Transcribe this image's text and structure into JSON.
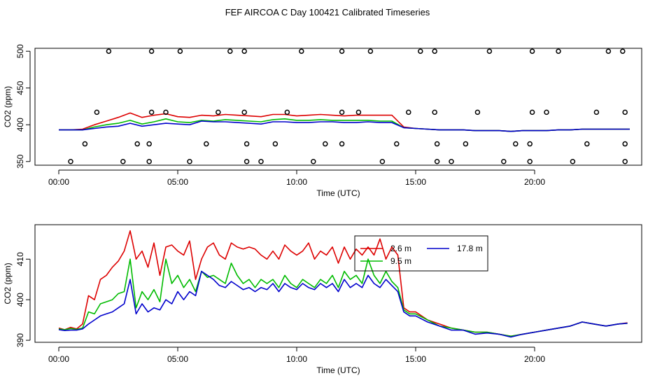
{
  "figure": {
    "title": "FEF AIRCOA C  Day 100421  Calibrated Timeseries"
  },
  "chart_data": [
    {
      "type": "line",
      "panel": "top",
      "xlabel": "Time (UTC)",
      "ylabel": "CO2 (ppm)",
      "xlim": [
        -1,
        24.5
      ],
      "ylim": [
        345,
        504
      ],
      "xticks": [
        0,
        5,
        10,
        15,
        20
      ],
      "xtick_labels": [
        "00:00",
        "05:00",
        "10:00",
        "15:00",
        "20:00"
      ],
      "yticks": [
        350,
        400,
        450,
        500
      ],
      "ytick_labels": [
        "350",
        "400",
        "450",
        "500"
      ],
      "grid": false,
      "legend": "none",
      "x": [
        0.0,
        0.5,
        1.0,
        1.5,
        2.0,
        2.5,
        3.0,
        3.5,
        4.0,
        4.5,
        5.0,
        5.5,
        6.0,
        6.5,
        7.0,
        7.5,
        8.0,
        8.5,
        9.0,
        9.5,
        10.0,
        10.5,
        11.0,
        11.5,
        12.0,
        12.5,
        13.0,
        13.5,
        14.0,
        14.5,
        15.0,
        15.5,
        16.0,
        16.5,
        17.0,
        17.5,
        18.0,
        18.5,
        19.0,
        19.5,
        20.0,
        20.5,
        21.0,
        21.5,
        22.0,
        22.5,
        23.0,
        23.5,
        24.0
      ],
      "series": [
        {
          "color": "#dd0000",
          "values": [
            393,
            393,
            394,
            400,
            405,
            410,
            416,
            410,
            413,
            415,
            411,
            410,
            413,
            412,
            414,
            413,
            412,
            411,
            414,
            414,
            412,
            413,
            414,
            413,
            412,
            413,
            413,
            413,
            413,
            397,
            395,
            394,
            393,
            393,
            393,
            392,
            392,
            392,
            391,
            392,
            392,
            392,
            393,
            393,
            394,
            394,
            394,
            394,
            394
          ]
        },
        {
          "color": "#00bb00",
          "values": [
            393,
            393,
            393,
            397,
            400,
            402,
            406,
            401,
            404,
            408,
            404,
            403,
            406,
            405,
            407,
            406,
            405,
            404,
            407,
            408,
            406,
            406,
            407,
            406,
            406,
            406,
            406,
            405,
            405,
            396,
            395,
            394,
            393,
            393,
            393,
            392,
            392,
            392,
            391,
            392,
            392,
            392,
            393,
            393,
            394,
            394,
            394,
            394,
            394
          ]
        },
        {
          "color": "#0000cc",
          "values": [
            393,
            393,
            393,
            395,
            397,
            398,
            402,
            398,
            400,
            402,
            401,
            400,
            405,
            404,
            404,
            403,
            402,
            401,
            404,
            404,
            403,
            403,
            404,
            404,
            403,
            403,
            404,
            403,
            403,
            396,
            395,
            394,
            393,
            393,
            393,
            392,
            392,
            392,
            391,
            392,
            392,
            392,
            393,
            393,
            394,
            394,
            394,
            394,
            394
          ]
        }
      ],
      "markers": {
        "style": "open-circle",
        "x": [
          2.1,
          3.9,
          5.1,
          7.2,
          7.8,
          10.2,
          11.9,
          13.1,
          15.2,
          15.8,
          18.1,
          19.9,
          21.0,
          23.1,
          23.7,
          1.6,
          3.9,
          4.5,
          6.7,
          7.8,
          9.6,
          11.9,
          12.6,
          14.7,
          15.8,
          17.6,
          19.9,
          20.5,
          22.6,
          23.8,
          1.1,
          3.3,
          3.8,
          6.2,
          7.9,
          9.1,
          11.2,
          11.9,
          14.2,
          15.9,
          17.1,
          19.2,
          19.8,
          22.2,
          23.8,
          0.5,
          2.7,
          3.8,
          5.5,
          7.9,
          8.5,
          10.7,
          13.6,
          15.9,
          16.5,
          18.7,
          19.8,
          21.6,
          23.8
        ],
        "y": [
          500,
          500,
          500,
          500,
          500,
          500,
          500,
          500,
          500,
          500,
          500,
          500,
          500,
          500,
          500,
          417,
          417,
          417,
          417,
          417,
          417,
          417,
          417,
          417,
          417,
          417,
          417,
          417,
          417,
          417,
          374,
          374,
          374,
          374,
          374,
          374,
          374,
          374,
          374,
          374,
          374,
          374,
          374,
          374,
          374,
          350,
          350,
          350,
          350,
          350,
          350,
          350,
          350,
          350,
          350,
          350,
          350,
          350,
          350
        ]
      }
    },
    {
      "type": "line",
      "panel": "bottom",
      "xlabel": "Time (UTC)",
      "ylabel": "CO2 (ppm)",
      "xlim": [
        -1,
        24.5
      ],
      "ylim": [
        389.5,
        418.5
      ],
      "xticks": [
        0,
        5,
        10,
        15,
        20
      ],
      "xtick_labels": [
        "00:00",
        "05:00",
        "10:00",
        "15:00",
        "20:00"
      ],
      "yticks": [
        390,
        400,
        410
      ],
      "ytick_labels": [
        "390",
        "400",
        "410"
      ],
      "grid": false,
      "legend_position": "top-right",
      "legend_entries": [
        {
          "label": "2.6 m",
          "color": "#dd0000"
        },
        {
          "label": "9.5 m",
          "color": "#00bb00"
        },
        {
          "label": "17.8 m",
          "color": "#0000cc"
        }
      ],
      "x": [
        0.0,
        0.25,
        0.5,
        0.75,
        1.0,
        1.25,
        1.5,
        1.75,
        2.0,
        2.25,
        2.5,
        2.75,
        3.0,
        3.25,
        3.5,
        3.75,
        4.0,
        4.25,
        4.5,
        4.75,
        5.0,
        5.25,
        5.5,
        5.75,
        6.0,
        6.25,
        6.5,
        6.75,
        7.0,
        7.25,
        7.5,
        7.75,
        8.0,
        8.25,
        8.5,
        8.75,
        9.0,
        9.25,
        9.5,
        9.75,
        10.0,
        10.25,
        10.5,
        10.75,
        11.0,
        11.25,
        11.5,
        11.75,
        12.0,
        12.25,
        12.5,
        12.75,
        13.0,
        13.25,
        13.5,
        13.75,
        14.0,
        14.25,
        14.5,
        14.75,
        15.0,
        15.5,
        16.0,
        16.5,
        17.0,
        17.5,
        18.0,
        18.5,
        19.0,
        19.5,
        20.0,
        20.5,
        21.0,
        21.5,
        22.0,
        22.5,
        23.0,
        23.5,
        23.9
      ],
      "series": [
        {
          "name": "2.6 m",
          "color": "#dd0000",
          "values": [
            393.0,
            392.6,
            393.2,
            392.8,
            394.0,
            401.0,
            400.0,
            405.0,
            406.0,
            408.0,
            409.5,
            412.0,
            417.0,
            410.0,
            412.0,
            408.0,
            414.0,
            406.0,
            413.0,
            413.5,
            412.0,
            411.0,
            414.5,
            405.0,
            410.0,
            413.0,
            414.0,
            411.0,
            410.0,
            414.0,
            413.0,
            412.5,
            413.0,
            412.5,
            411.0,
            410.0,
            412.0,
            410.0,
            413.5,
            412.0,
            411.0,
            412.0,
            414.0,
            410.0,
            412.0,
            411.0,
            413.0,
            409.0,
            413.0,
            410.0,
            412.5,
            411.0,
            413.0,
            411.0,
            415.0,
            410.0,
            413.0,
            411.0,
            398.0,
            397.0,
            397.0,
            395.0,
            394.0,
            393.0,
            392.5,
            392.0,
            392.0,
            391.5,
            391.0,
            391.5,
            392.0,
            392.5,
            393.0,
            393.5,
            394.5,
            394.0,
            393.5,
            394.0,
            394.3
          ]
        },
        {
          "name": "9.5 m",
          "color": "#00bb00",
          "values": [
            392.8,
            392.6,
            392.9,
            392.7,
            393.0,
            397.0,
            396.5,
            399.0,
            399.5,
            400.0,
            401.5,
            402.0,
            410.0,
            398.0,
            402.0,
            400.0,
            402.5,
            399.5,
            410.0,
            404.0,
            406.0,
            403.0,
            405.0,
            402.0,
            407.0,
            405.5,
            406.0,
            405.0,
            404.0,
            409.0,
            406.0,
            404.0,
            405.0,
            403.0,
            405.0,
            404.0,
            405.0,
            403.0,
            406.0,
            404.0,
            403.0,
            405.0,
            404.0,
            403.0,
            405.0,
            404.0,
            406.0,
            403.0,
            407.0,
            405.0,
            406.0,
            404.0,
            410.0,
            406.0,
            404.0,
            407.0,
            404.5,
            403.0,
            397.5,
            396.5,
            396.5,
            395.0,
            393.5,
            393.0,
            392.5,
            392.0,
            392.0,
            391.5,
            391.0,
            391.5,
            392.0,
            392.5,
            393.0,
            393.5,
            394.5,
            394.0,
            393.5,
            394.0,
            394.2
          ]
        },
        {
          "name": "17.8 m",
          "color": "#0000cc",
          "values": [
            392.6,
            392.4,
            392.5,
            392.5,
            392.8,
            394.0,
            395.0,
            396.0,
            396.5,
            397.0,
            398.0,
            399.0,
            405.0,
            396.5,
            399.0,
            397.0,
            398.0,
            397.5,
            400.0,
            399.0,
            402.0,
            400.0,
            402.0,
            401.0,
            407.0,
            406.0,
            405.0,
            403.5,
            403.0,
            404.5,
            403.5,
            402.5,
            403.0,
            402.0,
            403.0,
            402.5,
            404.0,
            402.0,
            404.0,
            403.0,
            402.5,
            404.0,
            403.0,
            402.5,
            404.0,
            403.0,
            404.0,
            402.0,
            405.0,
            403.0,
            404.0,
            403.0,
            406.0,
            404.0,
            403.0,
            405.0,
            403.5,
            402.0,
            397.0,
            396.0,
            396.0,
            394.5,
            393.5,
            392.5,
            392.5,
            391.5,
            391.8,
            391.5,
            390.8,
            391.5,
            392.0,
            392.5,
            393.0,
            393.5,
            394.5,
            394.0,
            393.5,
            394.0,
            394.2
          ]
        }
      ]
    }
  ]
}
